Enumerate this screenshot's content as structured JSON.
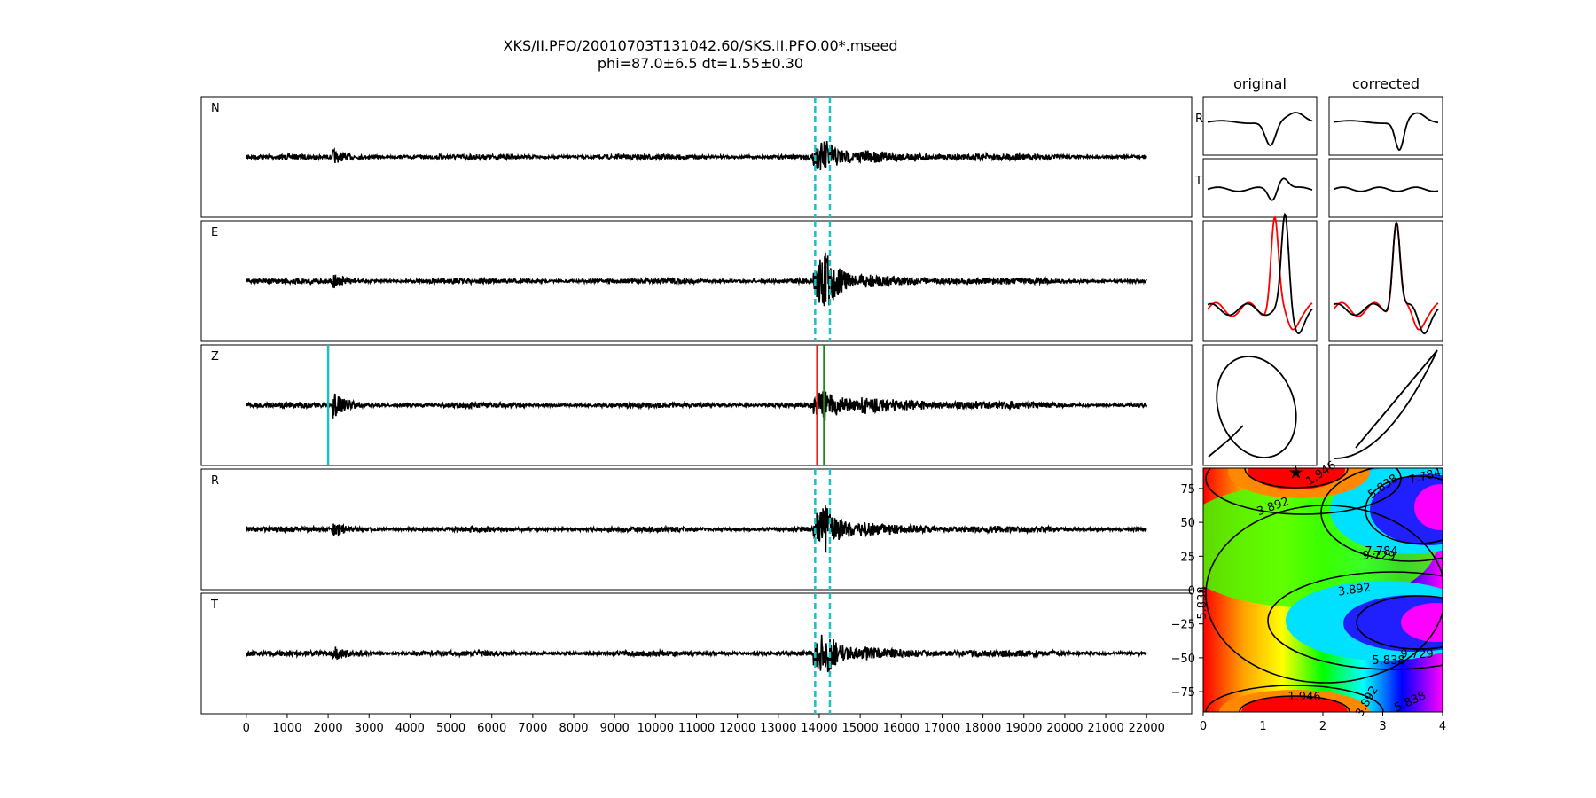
{
  "title": {
    "line1": "XKS/II.PFO/20010703T131042.60/SKS.II.PFO.00*.mseed",
    "line2": "phi=87.0±6.5 dt=1.55±0.30"
  },
  "chart_data": [
    {
      "type": "line",
      "kind": "seismogram-traces",
      "channels": [
        "N",
        "E",
        "Z",
        "R",
        "T"
      ],
      "x_ticks": [
        0,
        1000,
        2000,
        3000,
        4000,
        5000,
        6000,
        7000,
        8000,
        9000,
        10000,
        11000,
        12000,
        13000,
        14000,
        15000,
        16000,
        17000,
        18000,
        19000,
        20000,
        21000,
        22000
      ],
      "xlim": [
        -1100,
        23100
      ],
      "trace_range": [
        0,
        22000
      ],
      "window_markers": {
        "start": 13900,
        "end": 14260,
        "color": "#1fbfc0",
        "style": "dashed",
        "channels": [
          "N",
          "E",
          "R",
          "T"
        ]
      },
      "phase_markers": [
        {
          "x": 2000,
          "color": "#1fbfc0",
          "channel": "Z"
        },
        {
          "x": 13950,
          "color": "#e3211c",
          "channel": "Z"
        },
        {
          "x": 14120,
          "color": "#1a8a1a",
          "channel": "Z"
        }
      ],
      "arrival_bursts": [
        2100,
        14150
      ]
    },
    {
      "type": "line",
      "kind": "particle-motion-panels",
      "column_titles": [
        "original",
        "corrected"
      ],
      "row_labels": [
        "R",
        "T"
      ],
      "waveform_colors": [
        "#000000",
        "#ff0000"
      ]
    },
    {
      "type": "heatmap",
      "kind": "error-surface",
      "x_ticks": [
        0,
        1,
        2,
        3,
        4
      ],
      "y_ticks": [
        75,
        50,
        25,
        0,
        -25,
        -50,
        -75
      ],
      "xlim": [
        0,
        4
      ],
      "ylim": [
        -90,
        90
      ],
      "best_fit": {
        "dt": 1.55,
        "phi": 87.0
      },
      "contour_labels": [
        "1.946",
        "3.892",
        "5.838",
        "7.784",
        "9.729",
        "3.892",
        "5.838",
        "7.784",
        "9.729",
        "1.946",
        "3.892",
        "5.838",
        "5.838"
      ],
      "colormap": "gist_rainbow"
    }
  ]
}
